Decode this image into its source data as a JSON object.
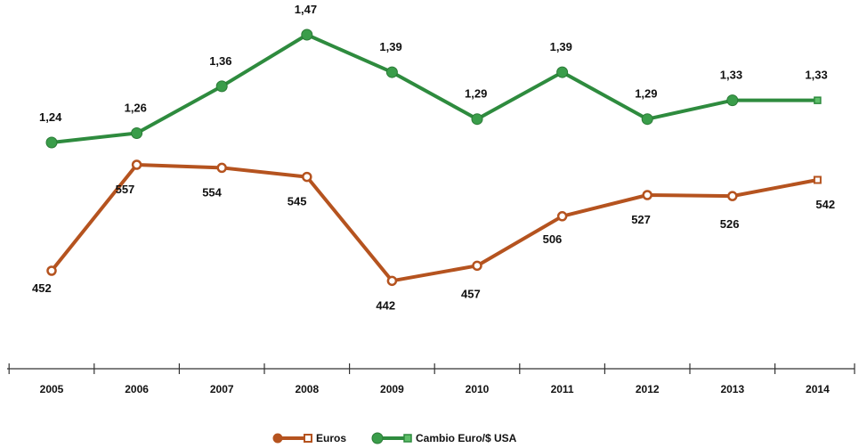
{
  "chart_data": {
    "type": "line",
    "title": "",
    "xlabel": "",
    "ylabel": "",
    "categories": [
      "2005",
      "2006",
      "2007",
      "2008",
      "2009",
      "2010",
      "2011",
      "2012",
      "2013",
      "2014"
    ],
    "grid": false,
    "legend_position": "bottom-center",
    "series": [
      {
        "name": "Euros",
        "color": "#b5531f",
        "marker": "circle-hollow",
        "values": [
          452,
          557,
          554,
          545,
          442,
          457,
          506,
          527,
          526,
          542
        ],
        "labels": [
          "452",
          "557",
          "554",
          "545",
          "442",
          "457",
          "506",
          "527",
          "526",
          "542"
        ]
      },
      {
        "name": "Cambio Euro/$ USA",
        "color": "#2e8b3e",
        "marker": "circle-filled",
        "values": [
          1.24,
          1.26,
          1.36,
          1.47,
          1.39,
          1.29,
          1.39,
          1.29,
          1.33,
          1.33
        ],
        "labels": [
          "1,24",
          "1,26",
          "1,36",
          "1,47",
          "1,39",
          "1,29",
          "1,39",
          "1,29",
          "1,33",
          "1,33"
        ]
      }
    ]
  }
}
